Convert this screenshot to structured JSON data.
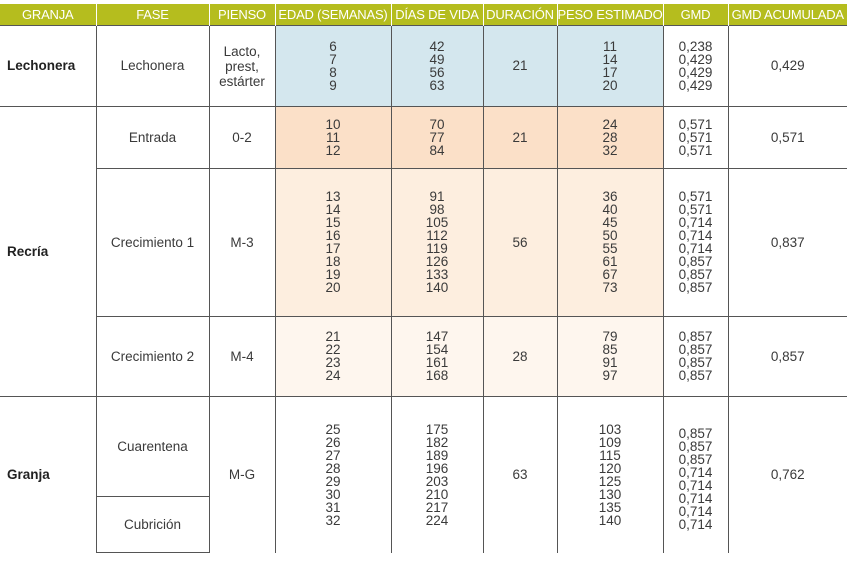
{
  "headers": [
    "GRANJA",
    "FASE",
    "PIENSO",
    "EDAD (SEMANAS)",
    "DÍAS DE VIDA",
    "DURACIÓN",
    "PESO ESTIMADO",
    "GMD",
    "GMD ACUMULADA"
  ],
  "lechonera": {
    "granja": "Lechonera",
    "fase": "Lechonera",
    "pienso": "Lacto, prest, estárter",
    "edad": [
      "6",
      "7",
      "8",
      "9"
    ],
    "dias": [
      "42",
      "49",
      "56",
      "63"
    ],
    "duracion": "21",
    "peso": [
      "11",
      "14",
      "17",
      "20"
    ],
    "gmd": [
      "0,238",
      "0,429",
      "0,429",
      "0,429"
    ],
    "gmd_acum": "0,429"
  },
  "recria": {
    "granja": "Recría",
    "entrada": {
      "fase": "Entrada",
      "pienso": "0-2",
      "edad": [
        "10",
        "11",
        "12"
      ],
      "dias": [
        "70",
        "77",
        "84"
      ],
      "duracion": "21",
      "peso": [
        "24",
        "28",
        "32"
      ],
      "gmd": [
        "0,571",
        "0,571",
        "0,571"
      ],
      "gmd_acum": "0,571"
    },
    "crecimiento1": {
      "fase": "Crecimiento 1",
      "pienso": "M-3",
      "edad": [
        "13",
        "14",
        "15",
        "16",
        "17",
        "18",
        "19",
        "20"
      ],
      "dias": [
        "91",
        "98",
        "105",
        "112",
        "119",
        "126",
        "133",
        "140"
      ],
      "duracion": "56",
      "peso": [
        "36",
        "40",
        "45",
        "50",
        "55",
        "61",
        "67",
        "73"
      ],
      "gmd": [
        "0,571",
        "0,571",
        "0,714",
        "0,714",
        "0,714",
        "0,857",
        "0,857",
        "0,857"
      ],
      "gmd_acum": "0,837"
    },
    "crecimiento2": {
      "fase": "Crecimiento 2",
      "pienso": "M-4",
      "edad": [
        "21",
        "22",
        "23",
        "24"
      ],
      "dias": [
        "147",
        "154",
        "161",
        "168"
      ],
      "duracion": "28",
      "peso": [
        "79",
        "85",
        "91",
        "97"
      ],
      "gmd": [
        "0,857",
        "0,857",
        "0,857",
        "0,857"
      ],
      "gmd_acum": "0,857"
    }
  },
  "granja": {
    "granja": "Granja",
    "fase_cuarentena": "Cuarentena",
    "fase_cubricion": "Cubrición",
    "pienso": "M-G",
    "edad": [
      "25",
      "26",
      "27",
      "28",
      "29",
      "30",
      "31",
      "32"
    ],
    "dias": [
      "175",
      "182",
      "189",
      "196",
      "203",
      "210",
      "217",
      "224"
    ],
    "duracion": "63",
    "peso": [
      "103",
      "109",
      "115",
      "120",
      "125",
      "130",
      "135",
      "140"
    ],
    "gmd": [
      "0,857",
      "0,857",
      "0,857",
      "0,714",
      "0,714",
      "0,714",
      "0,714",
      "0,714"
    ],
    "gmd_acum": "0,762"
  },
  "colors": {
    "header": "#b5bd1e",
    "lechonera": "#d4e7ee",
    "entrada": "#fbe0c8",
    "crecimiento1": "#fdeedf",
    "crecimiento2": "#fef6ee"
  }
}
